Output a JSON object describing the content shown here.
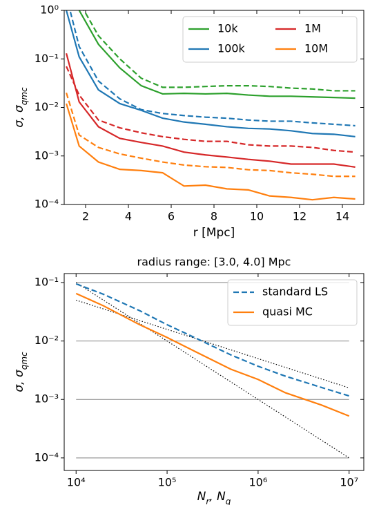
{
  "chart_data": [
    {
      "type": "line",
      "xlabel": "r [Mpc]",
      "ylabel": [
        {
          "text": "σ, σ"
        },
        {
          "text": "qmc",
          "sub": true
        }
      ],
      "x": [
        1.1,
        1.7,
        2.6,
        3.6,
        4.6,
        5.6,
        6.6,
        7.6,
        8.6,
        9.6,
        10.6,
        11.6,
        12.6,
        13.6,
        14.6
      ],
      "series": [
        {
          "name": "10k",
          "color": "#2ca02c",
          "values": [
            3,
            1.0,
            0.2,
            0.065,
            0.028,
            0.019,
            0.0195,
            0.019,
            0.0195,
            0.018,
            0.017,
            0.017,
            0.0165,
            0.016,
            0.0155
          ],
          "dashed_values": [
            5,
            1.5,
            0.3,
            0.1,
            0.04,
            0.026,
            0.026,
            0.027,
            0.028,
            0.028,
            0.027,
            0.025,
            0.024,
            0.022,
            0.022
          ]
        },
        {
          "name": "100k",
          "color": "#1f77b4",
          "values": [
            1.0,
            0.11,
            0.023,
            0.012,
            0.0087,
            0.006,
            0.005,
            0.0045,
            0.004,
            0.0037,
            0.0036,
            0.0033,
            0.0029,
            0.0028,
            0.0025
          ],
          "dashed_values": [
            2,
            0.18,
            0.035,
            0.015,
            0.009,
            0.0075,
            0.0068,
            0.0063,
            0.006,
            0.0055,
            0.0052,
            0.0052,
            0.0048,
            0.0045,
            0.0042
          ]
        },
        {
          "name": "1M",
          "color": "#d62728",
          "values": [
            0.13,
            0.013,
            0.004,
            0.0023,
            0.0019,
            0.0016,
            0.0012,
            0.00105,
            0.00095,
            0.00085,
            0.00078,
            0.00068,
            0.00068,
            0.00068,
            0.00059
          ],
          "dashed_values": [
            0.07,
            0.018,
            0.0055,
            0.0038,
            0.003,
            0.0025,
            0.0022,
            0.002,
            0.002,
            0.0017,
            0.0016,
            0.0016,
            0.0015,
            0.0013,
            0.0012
          ]
        },
        {
          "name": "10M",
          "color": "#ff7f0e",
          "values": [
            0.012,
            0.0016,
            0.00075,
            0.00053,
            0.0005,
            0.00045,
            0.00024,
            0.00025,
            0.00021,
            0.0002,
            0.00015,
            0.00014,
            0.000125,
            0.00014,
            0.00013
          ],
          "dashed_values": [
            0.02,
            0.0027,
            0.0015,
            0.0011,
            0.0009,
            0.00075,
            0.00065,
            0.0006,
            0.00058,
            0.00052,
            0.0005,
            0.00045,
            0.00042,
            0.00038,
            0.00038
          ]
        }
      ],
      "xlim": [
        1,
        15
      ],
      "xticks": [
        2,
        4,
        6,
        8,
        10,
        12,
        14
      ],
      "yscale": "log",
      "ylim": [
        0.0001,
        1
      ],
      "yticks": [
        {
          "value": 0.0001,
          "label": "10⁻⁴"
        },
        {
          "value": 0.001,
          "label": "10⁻³"
        },
        {
          "value": 0.01,
          "label": "10⁻²"
        },
        {
          "value": 0.1,
          "label": "10⁻¹"
        },
        {
          "value": 1,
          "label": "10⁰"
        }
      ],
      "grid": false,
      "legend": {
        "loc": "upper right",
        "ncol": 2
      }
    },
    {
      "type": "line",
      "title": "radius range: [3.0, 4.0] Mpc",
      "xlabel": [
        {
          "text": "N"
        },
        {
          "text": "r",
          "sub": true
        },
        {
          "text": ", N"
        },
        {
          "text": "q",
          "sub": true
        }
      ],
      "ylabel": [
        {
          "text": "σ, σ"
        },
        {
          "text": "qmc",
          "sub": true
        }
      ],
      "x": [
        10000,
        20000,
        50000,
        100000,
        200000,
        500000,
        1000000,
        2000000,
        5000000,
        10000000
      ],
      "series": [
        {
          "name": "standard LS",
          "color": "#1f77b4",
          "style": "dashed",
          "values": [
            0.095,
            0.063,
            0.033,
            0.019,
            0.0115,
            0.0058,
            0.0037,
            0.0025,
            0.0016,
            0.00115
          ]
        },
        {
          "name": "quasi MC",
          "color": "#ff7f0e",
          "style": "solid",
          "values": [
            0.065,
            0.04,
            0.019,
            0.0115,
            0.0067,
            0.0033,
            0.0022,
            0.0013,
            0.0008,
            0.00052
          ]
        }
      ],
      "reference_lines": [
        {
          "color": "#000000",
          "style": "dotted",
          "x": [
            10000,
            10000000
          ],
          "values": [
            0.1,
            0.0001
          ]
        },
        {
          "color": "#000000",
          "style": "dotted",
          "x": [
            10000,
            10000000
          ],
          "values": [
            0.05,
            0.00158
          ]
        }
      ],
      "xscale": "log",
      "xlim": [
        7400,
        14500000
      ],
      "xticks": [
        {
          "value": 10000,
          "label": "10⁴"
        },
        {
          "value": 100000,
          "label": "10⁵"
        },
        {
          "value": 1000000,
          "label": "10⁶"
        },
        {
          "value": 10000000,
          "label": "10⁷"
        }
      ],
      "yscale": "log",
      "ylim": [
        6.1e-05,
        0.1425
      ],
      "yticks": [
        {
          "value": 0.0001,
          "label": "10⁻⁴"
        },
        {
          "value": 0.001,
          "label": "10⁻³"
        },
        {
          "value": 0.01,
          "label": "10⁻²"
        },
        {
          "value": 0.1,
          "label": "10⁻¹"
        }
      ],
      "grid": true,
      "legend": {
        "loc": "upper right",
        "ncol": 1
      }
    }
  ]
}
